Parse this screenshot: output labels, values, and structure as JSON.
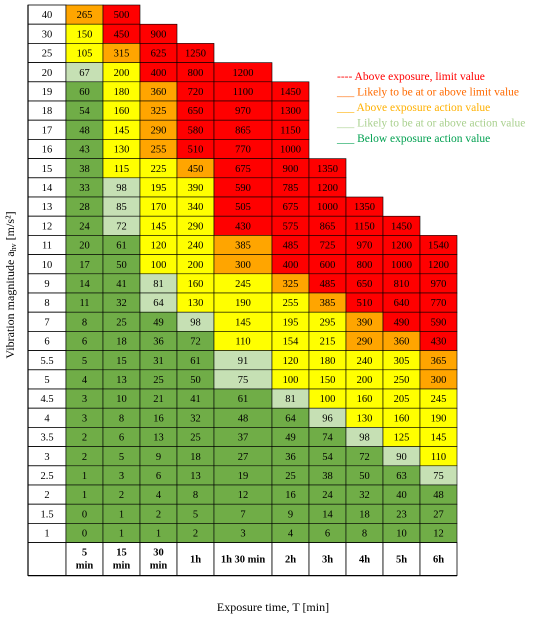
{
  "chart_data": {
    "type": "table",
    "title": "",
    "xlabel": "Exposure time, T [min]",
    "ylabel": "Vibration magnitude a",
    "ylabel_sub": "hv",
    "ylabel_unit": " [m/s²]",
    "columns": [
      {
        "line1": "5",
        "line2": "min"
      },
      {
        "line1": "15",
        "line2": "min"
      },
      {
        "line1": "30",
        "line2": "min"
      },
      {
        "line1": "1h",
        "line2": ""
      },
      {
        "line1": "1h 30 min",
        "line2": ""
      },
      {
        "line1": "2h",
        "line2": ""
      },
      {
        "line1": "3h",
        "line2": ""
      },
      {
        "line1": "4h",
        "line2": ""
      },
      {
        "line1": "5h",
        "line2": ""
      },
      {
        "line1": "6h",
        "line2": ""
      }
    ],
    "colors": {
      "R": "#ff0000",
      "O": "#ffa500",
      "Y": "#ffff00",
      "L": "#c6e0b4",
      "G": "#70ad47"
    },
    "rows": [
      {
        "label": "40",
        "values": [
          "265",
          "500",
          "",
          "",
          "",
          "",
          "",
          "",
          "",
          ""
        ],
        "zones": [
          "O",
          "R",
          "",
          "",
          "",
          "",
          "",
          "",
          "",
          ""
        ]
      },
      {
        "label": "30",
        "values": [
          "150",
          "450",
          "900",
          "",
          "",
          "",
          "",
          "",
          "",
          ""
        ],
        "zones": [
          "Y",
          "R",
          "R",
          "",
          "",
          "",
          "",
          "",
          "",
          ""
        ]
      },
      {
        "label": "25",
        "values": [
          "105",
          "315",
          "625",
          "1250",
          "",
          "",
          "",
          "",
          "",
          ""
        ],
        "zones": [
          "Y",
          "O",
          "R",
          "R",
          "",
          "",
          "",
          "",
          "",
          ""
        ]
      },
      {
        "label": "20",
        "values": [
          "67",
          "200",
          "400",
          "800",
          "1200",
          "",
          "",
          "",
          "",
          ""
        ],
        "zones": [
          "L",
          "Y",
          "R",
          "R",
          "R",
          "",
          "",
          "",
          "",
          ""
        ]
      },
      {
        "label": "19",
        "values": [
          "60",
          "180",
          "360",
          "720",
          "1100",
          "1450",
          "",
          "",
          "",
          ""
        ],
        "zones": [
          "G",
          "Y",
          "O",
          "R",
          "R",
          "R",
          "",
          "",
          "",
          ""
        ]
      },
      {
        "label": "18",
        "values": [
          "54",
          "160",
          "325",
          "650",
          "970",
          "1300",
          "",
          "",
          "",
          ""
        ],
        "zones": [
          "G",
          "Y",
          "O",
          "R",
          "R",
          "R",
          "",
          "",
          "",
          ""
        ]
      },
      {
        "label": "17",
        "values": [
          "48",
          "145",
          "290",
          "580",
          "865",
          "1150",
          "",
          "",
          "",
          ""
        ],
        "zones": [
          "G",
          "Y",
          "O",
          "R",
          "R",
          "R",
          "",
          "",
          "",
          ""
        ]
      },
      {
        "label": "16",
        "values": [
          "43",
          "130",
          "255",
          "510",
          "770",
          "1000",
          "",
          "",
          "",
          ""
        ],
        "zones": [
          "G",
          "Y",
          "O",
          "R",
          "R",
          "R",
          "",
          "",
          "",
          ""
        ]
      },
      {
        "label": "15",
        "values": [
          "38",
          "115",
          "225",
          "450",
          "675",
          "900",
          "1350",
          "",
          "",
          ""
        ],
        "zones": [
          "G",
          "Y",
          "Y",
          "O",
          "R",
          "R",
          "R",
          "",
          "",
          ""
        ]
      },
      {
        "label": "14",
        "values": [
          "33",
          "98",
          "195",
          "390",
          "590",
          "785",
          "1200",
          "",
          "",
          ""
        ],
        "zones": [
          "G",
          "L",
          "Y",
          "Y",
          "R",
          "R",
          "R",
          "",
          "",
          ""
        ]
      },
      {
        "label": "13",
        "values": [
          "28",
          "85",
          "170",
          "340",
          "505",
          "675",
          "1000",
          "1350",
          "",
          ""
        ],
        "zones": [
          "G",
          "L",
          "Y",
          "Y",
          "R",
          "R",
          "R",
          "R",
          "",
          ""
        ]
      },
      {
        "label": "12",
        "values": [
          "24",
          "72",
          "145",
          "290",
          "430",
          "575",
          "865",
          "1150",
          "1450",
          ""
        ],
        "zones": [
          "G",
          "L",
          "Y",
          "Y",
          "R",
          "R",
          "R",
          "R",
          "R",
          ""
        ]
      },
      {
        "label": "11",
        "values": [
          "20",
          "61",
          "120",
          "240",
          "385",
          "485",
          "725",
          "970",
          "1200",
          "1540"
        ],
        "zones": [
          "G",
          "G",
          "Y",
          "Y",
          "O",
          "R",
          "R",
          "R",
          "R",
          "R"
        ]
      },
      {
        "label": "10",
        "values": [
          "17",
          "50",
          "100",
          "200",
          "300",
          "400",
          "600",
          "800",
          "1000",
          "1200"
        ],
        "zones": [
          "G",
          "G",
          "Y",
          "Y",
          "O",
          "R",
          "R",
          "R",
          "R",
          "R"
        ]
      },
      {
        "label": "9",
        "values": [
          "14",
          "41",
          "81",
          "160",
          "245",
          "325",
          "485",
          "650",
          "810",
          "970"
        ],
        "zones": [
          "G",
          "G",
          "L",
          "Y",
          "Y",
          "O",
          "R",
          "R",
          "R",
          "R"
        ]
      },
      {
        "label": "8",
        "values": [
          "11",
          "32",
          "64",
          "130",
          "190",
          "255",
          "385",
          "510",
          "640",
          "770"
        ],
        "zones": [
          "G",
          "G",
          "L",
          "Y",
          "Y",
          "Y",
          "O",
          "R",
          "R",
          "R"
        ]
      },
      {
        "label": "7",
        "values": [
          "8",
          "25",
          "49",
          "98",
          "145",
          "195",
          "295",
          "390",
          "490",
          "590"
        ],
        "zones": [
          "G",
          "G",
          "G",
          "L",
          "Y",
          "Y",
          "Y",
          "O",
          "R",
          "R"
        ]
      },
      {
        "label": "6",
        "values": [
          "6",
          "18",
          "36",
          "72",
          "110",
          "154",
          "215",
          "290",
          "360",
          "430"
        ],
        "zones": [
          "G",
          "G",
          "G",
          "G",
          "Y",
          "Y",
          "Y",
          "O",
          "O",
          "R"
        ]
      },
      {
        "label": "5.5",
        "values": [
          "5",
          "15",
          "31",
          "61",
          "91",
          "120",
          "180",
          "240",
          "305",
          "365"
        ],
        "zones": [
          "G",
          "G",
          "G",
          "G",
          "L",
          "Y",
          "Y",
          "Y",
          "Y",
          "O"
        ]
      },
      {
        "label": "5",
        "values": [
          "4",
          "13",
          "25",
          "50",
          "75",
          "100",
          "150",
          "200",
          "250",
          "300"
        ],
        "zones": [
          "G",
          "G",
          "G",
          "G",
          "L",
          "Y",
          "Y",
          "Y",
          "Y",
          "O"
        ]
      },
      {
        "label": "4.5",
        "values": [
          "3",
          "10",
          "21",
          "41",
          "61",
          "81",
          "100",
          "160",
          "205",
          "245"
        ],
        "zones": [
          "G",
          "G",
          "G",
          "G",
          "G",
          "L",
          "Y",
          "Y",
          "Y",
          "Y"
        ]
      },
      {
        "label": "4",
        "values": [
          "3",
          "8",
          "16",
          "32",
          "48",
          "64",
          "96",
          "130",
          "160",
          "190"
        ],
        "zones": [
          "G",
          "G",
          "G",
          "G",
          "G",
          "G",
          "L",
          "Y",
          "Y",
          "Y"
        ]
      },
      {
        "label": "3.5",
        "values": [
          "2",
          "6",
          "13",
          "25",
          "37",
          "49",
          "74",
          "98",
          "125",
          "145"
        ],
        "zones": [
          "G",
          "G",
          "G",
          "G",
          "G",
          "G",
          "G",
          "L",
          "Y",
          "Y"
        ]
      },
      {
        "label": "3",
        "values": [
          "2",
          "5",
          "9",
          "18",
          "27",
          "36",
          "54",
          "72",
          "90",
          "110"
        ],
        "zones": [
          "G",
          "G",
          "G",
          "G",
          "G",
          "G",
          "G",
          "G",
          "L",
          "Y"
        ]
      },
      {
        "label": "2.5",
        "values": [
          "1",
          "3",
          "6",
          "13",
          "19",
          "25",
          "38",
          "50",
          "63",
          "75"
        ],
        "zones": [
          "G",
          "G",
          "G",
          "G",
          "G",
          "G",
          "G",
          "G",
          "G",
          "L"
        ]
      },
      {
        "label": "2",
        "values": [
          "1",
          "2",
          "4",
          "8",
          "12",
          "16",
          "24",
          "32",
          "40",
          "48"
        ],
        "zones": [
          "G",
          "G",
          "G",
          "G",
          "G",
          "G",
          "G",
          "G",
          "G",
          "G"
        ]
      },
      {
        "label": "1.5",
        "values": [
          "0",
          "1",
          "2",
          "5",
          "7",
          "9",
          "14",
          "18",
          "23",
          "27"
        ],
        "zones": [
          "G",
          "G",
          "G",
          "G",
          "G",
          "G",
          "G",
          "G",
          "G",
          "G"
        ]
      },
      {
        "label": "1",
        "values": [
          "0",
          "1",
          "1",
          "2",
          "3",
          "4",
          "6",
          "8",
          "10",
          "12"
        ],
        "zones": [
          "G",
          "G",
          "G",
          "G",
          "G",
          "G",
          "G",
          "G",
          "G",
          "G"
        ]
      }
    ],
    "legend": [
      {
        "label": "---- Above exposure, limit value",
        "color": "#ff0000"
      },
      {
        "label": "___ Likely to be at or above limit value",
        "color": "#ff6a00"
      },
      {
        "label": "___ Above exposure action value",
        "color": "#ffb000"
      },
      {
        "label": "___ Likely to be at or above action value",
        "color": "#a9d08e"
      },
      {
        "label": "___ Below exposure action value",
        "color": "#00a050"
      }
    ],
    "legend_position": "top-right"
  }
}
